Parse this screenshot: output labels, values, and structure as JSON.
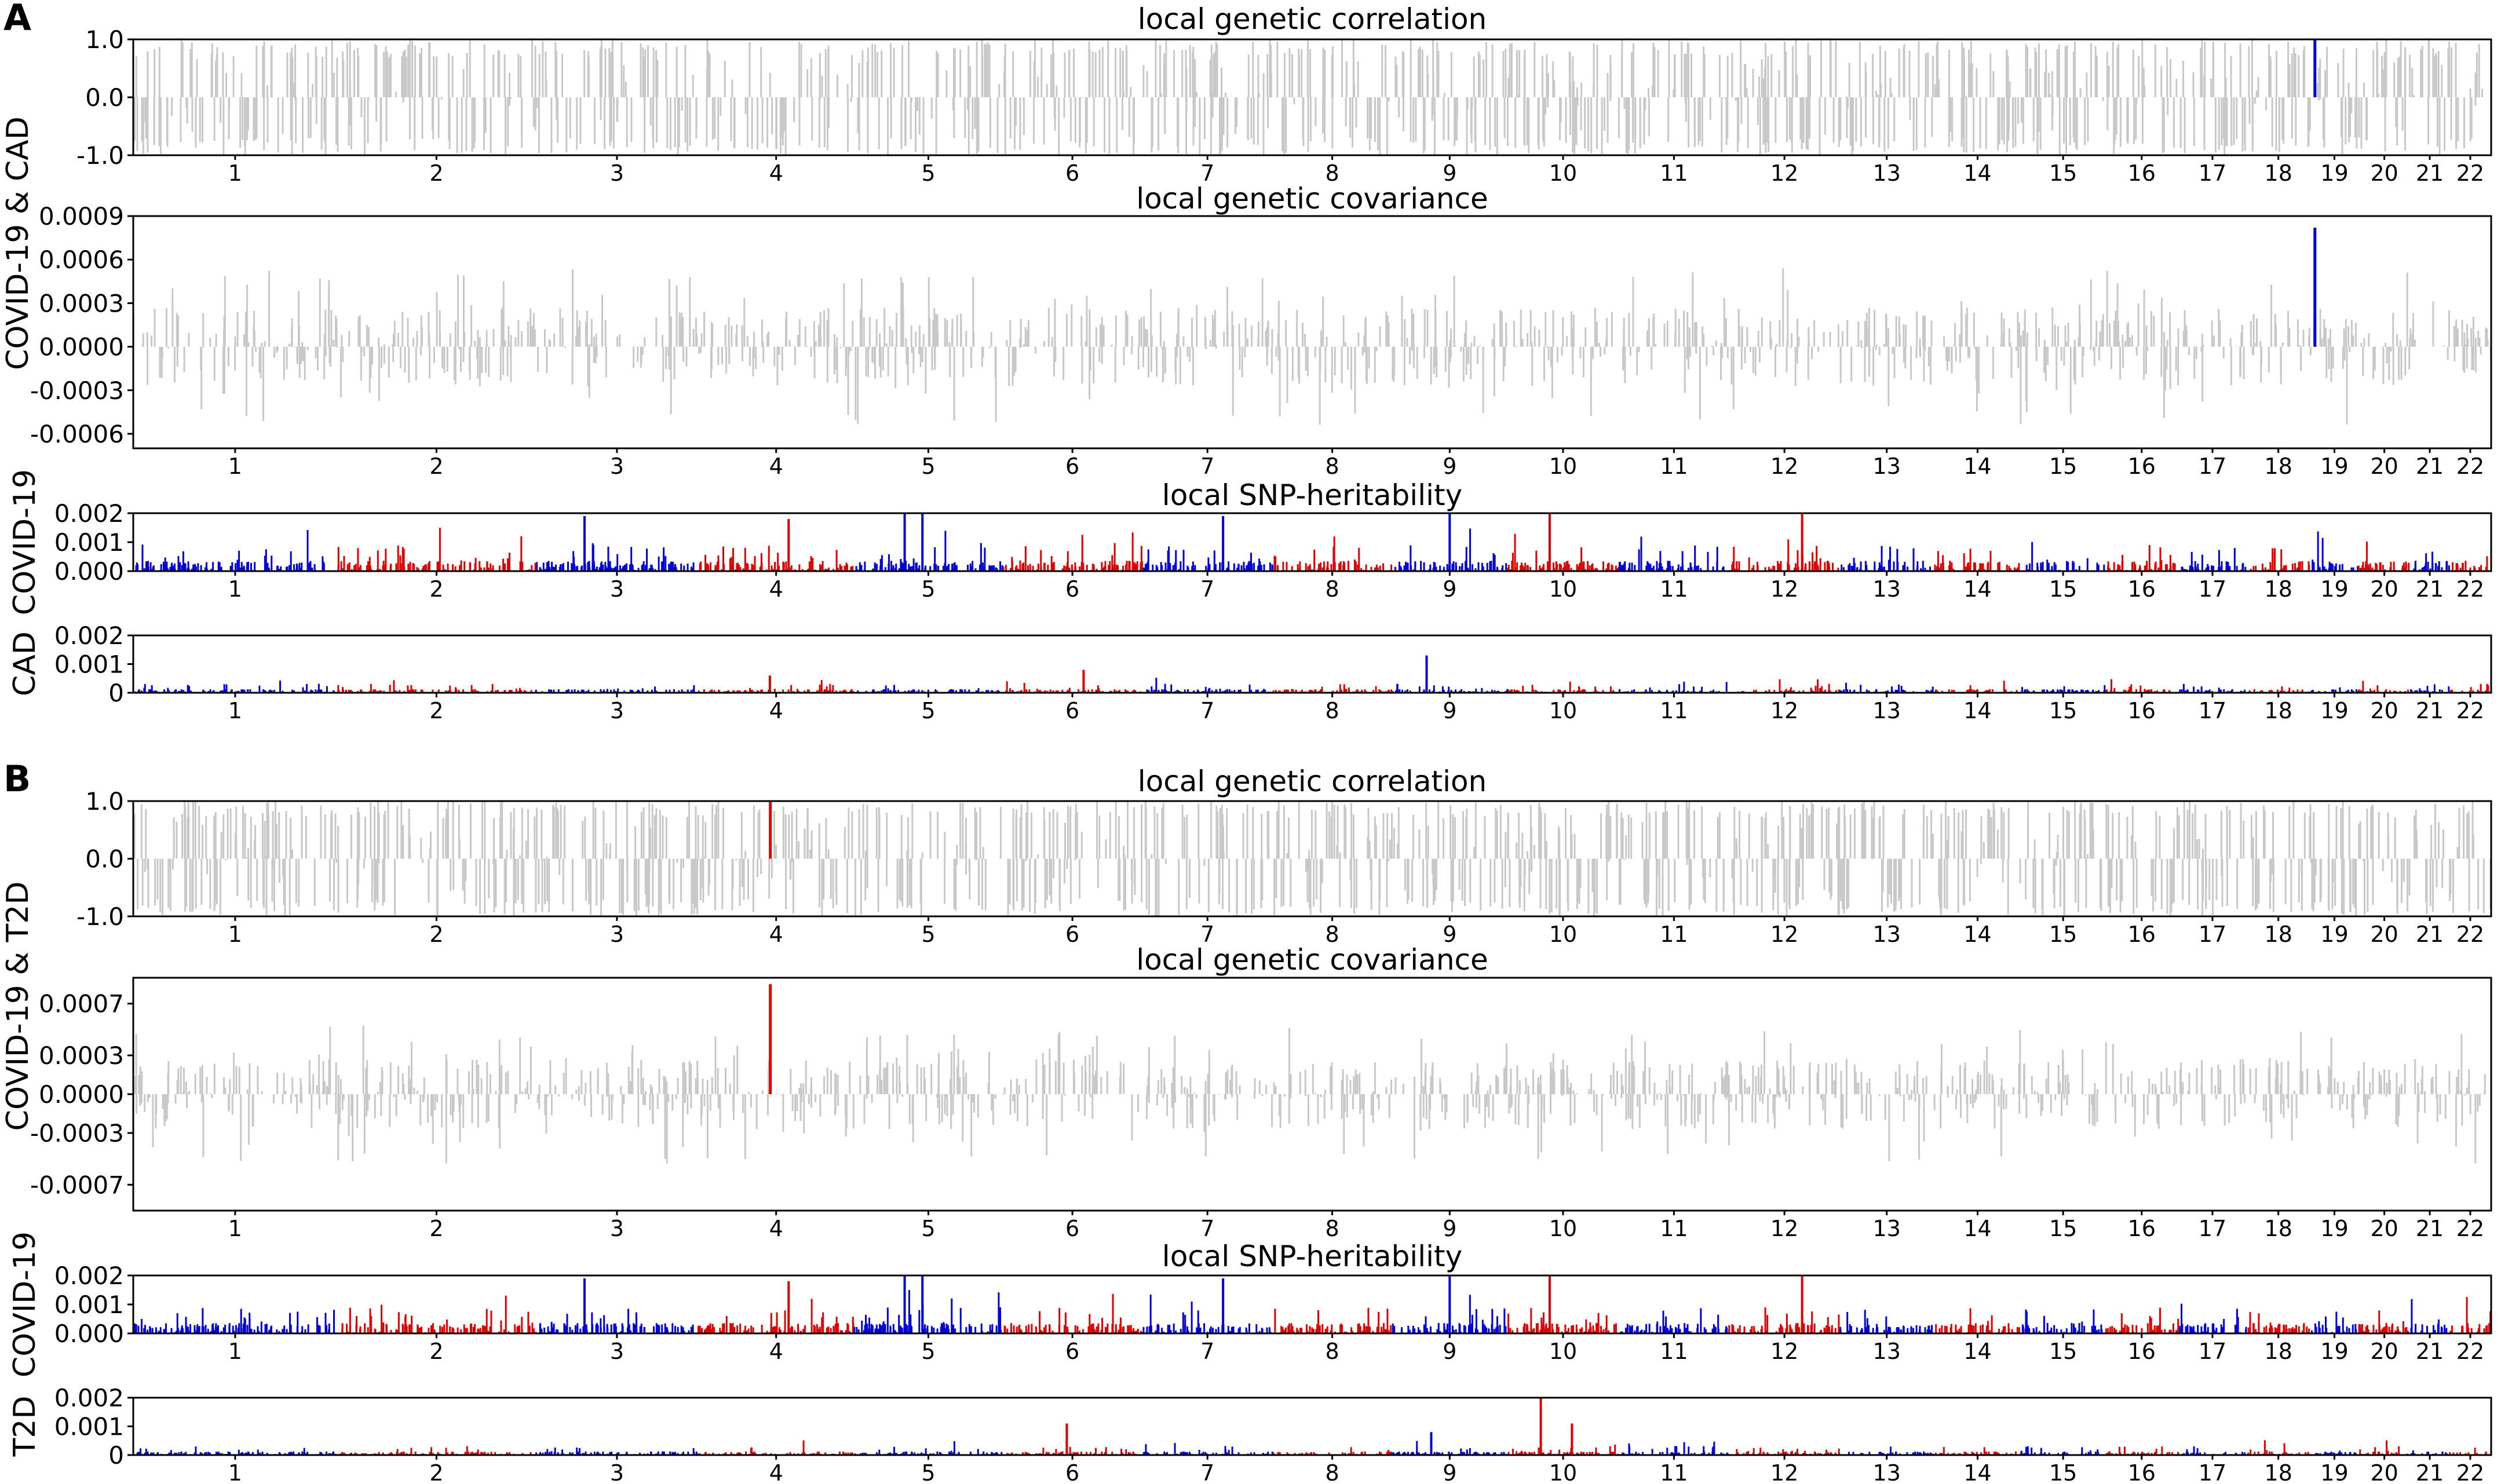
{
  "panels": [
    {
      "letter": "A",
      "pair_label": "COVID-19 & CAD",
      "trait1": "COVID-19",
      "trait2": "CAD"
    },
    {
      "letter": "B",
      "pair_label": "COVID-19 & T2D",
      "trait1": "COVID-19",
      "trait2": "T2D"
    }
  ],
  "colors": {
    "nonsignificant": "#c8c8c8",
    "blue": "#0000dd",
    "red": "#e00000",
    "axis": "#000000"
  },
  "chart_data": [
    {
      "type": "bar",
      "panel": "A",
      "title": "local genetic correlation",
      "ylim": [
        -1.0,
        1.0
      ],
      "yticks": [
        "1.0",
        "0.0",
        "-1.0"
      ],
      "categories": [
        "1",
        "2",
        "3",
        "4",
        "5",
        "6",
        "7",
        "8",
        "9",
        "10",
        "11",
        "12",
        "13",
        "14",
        "15",
        "16",
        "17",
        "18",
        "19",
        "20",
        "21",
        "22"
      ],
      "highlight": [
        {
          "chromosome": "19",
          "value": 1.0,
          "color": "blue"
        }
      ],
      "background": "dense grey bars spanning -1.0 to 1.0 across all chromosomes"
    },
    {
      "type": "bar",
      "panel": "A",
      "title": "local genetic covariance",
      "ylim": [
        -0.0007,
        0.0009
      ],
      "yticks": [
        "0.0009",
        "0.0006",
        "0.0003",
        "0.0000",
        "-0.0003",
        "-0.0006"
      ],
      "categories": [
        "1",
        "2",
        "3",
        "4",
        "5",
        "6",
        "7",
        "8",
        "9",
        "10",
        "11",
        "12",
        "13",
        "14",
        "15",
        "16",
        "17",
        "18",
        "19",
        "20",
        "21",
        "22"
      ],
      "highlight": [
        {
          "chromosome": "19",
          "value": 0.00082,
          "color": "blue"
        }
      ],
      "background": "grey bars mostly within -0.0004 to 0.0004"
    },
    {
      "type": "bar",
      "panel": "A",
      "title": "local SNP-heritability",
      "trait": "COVID-19",
      "ylim": [
        0,
        0.002
      ],
      "yticks": [
        "0.002",
        "0.001",
        "0.000"
      ],
      "categories": [
        "1",
        "2",
        "3",
        "4",
        "5",
        "6",
        "7",
        "8",
        "9",
        "10",
        "11",
        "12",
        "13",
        "14",
        "15",
        "16",
        "17",
        "18",
        "19",
        "20",
        "21",
        "22"
      ],
      "chromosome_colors": "alternating blue/red by chromosome",
      "peaks": [
        {
          "chromosome": "3",
          "value": 0.0019
        },
        {
          "chromosome": "4",
          "value": 0.0018
        },
        {
          "chromosome": "5",
          "value": 0.002
        },
        {
          "chromosome": "5",
          "value": 0.002
        },
        {
          "chromosome": "7",
          "value": 0.0019
        },
        {
          "chromosome": "9",
          "value": 0.002
        },
        {
          "chromosome": "10",
          "value": 0.002
        },
        {
          "chromosome": "12",
          "value": 0.002
        }
      ]
    },
    {
      "type": "bar",
      "panel": "A",
      "title": "",
      "trait": "CAD",
      "ylim": [
        0,
        0.002
      ],
      "yticks": [
        "0.002",
        "0.001",
        "0"
      ],
      "categories": [
        "1",
        "2",
        "3",
        "4",
        "5",
        "6",
        "7",
        "8",
        "9",
        "10",
        "11",
        "12",
        "13",
        "14",
        "15",
        "16",
        "17",
        "18",
        "19",
        "20",
        "21",
        "22"
      ],
      "chromosome_colors": "alternating blue/red by chromosome",
      "peaks": [
        {
          "chromosome": "9",
          "value": 0.0013
        },
        {
          "chromosome": "6",
          "value": 0.0008
        },
        {
          "chromosome": "4",
          "value": 0.0006
        }
      ]
    },
    {
      "type": "bar",
      "panel": "B",
      "title": "local genetic correlation",
      "ylim": [
        -1.0,
        1.0
      ],
      "yticks": [
        "1.0",
        "0.0",
        "-1.0"
      ],
      "categories": [
        "1",
        "2",
        "3",
        "4",
        "5",
        "6",
        "7",
        "8",
        "9",
        "10",
        "11",
        "12",
        "13",
        "14",
        "15",
        "16",
        "17",
        "18",
        "19",
        "20",
        "21",
        "22"
      ],
      "highlight": [
        {
          "chromosome": "4",
          "value": 1.0,
          "color": "red"
        }
      ],
      "background": "dense grey bars spanning -1.0 to 1.0 across all chromosomes"
    },
    {
      "type": "bar",
      "panel": "B",
      "title": "local genetic covariance",
      "ylim": [
        -0.0009,
        0.0009
      ],
      "yticks": [
        "0.0007",
        "0.0003",
        "0.0000",
        "-0.0003",
        "-0.0007"
      ],
      "categories": [
        "1",
        "2",
        "3",
        "4",
        "5",
        "6",
        "7",
        "8",
        "9",
        "10",
        "11",
        "12",
        "13",
        "14",
        "15",
        "16",
        "17",
        "18",
        "19",
        "20",
        "21",
        "22"
      ],
      "highlight": [
        {
          "chromosome": "4",
          "value": 0.00085,
          "color": "red"
        }
      ],
      "background": "grey bars mostly within -0.0005 to 0.0005"
    },
    {
      "type": "bar",
      "panel": "B",
      "title": "local SNP-heritability",
      "trait": "COVID-19",
      "ylim": [
        0,
        0.002
      ],
      "yticks": [
        "0.002",
        "0.001",
        "0.000"
      ],
      "categories": [
        "1",
        "2",
        "3",
        "4",
        "5",
        "6",
        "7",
        "8",
        "9",
        "10",
        "11",
        "12",
        "13",
        "14",
        "15",
        "16",
        "17",
        "18",
        "19",
        "20",
        "21",
        "22"
      ],
      "chromosome_colors": "alternating blue/red by chromosome",
      "peaks": [
        {
          "chromosome": "3",
          "value": 0.0019
        },
        {
          "chromosome": "4",
          "value": 0.0018
        },
        {
          "chromosome": "5",
          "value": 0.002
        },
        {
          "chromosome": "5",
          "value": 0.002
        },
        {
          "chromosome": "7",
          "value": 0.0019
        },
        {
          "chromosome": "9",
          "value": 0.002
        },
        {
          "chromosome": "10",
          "value": 0.002
        },
        {
          "chromosome": "12",
          "value": 0.002
        }
      ]
    },
    {
      "type": "bar",
      "panel": "B",
      "title": "",
      "trait": "T2D",
      "ylim": [
        0,
        0.002
      ],
      "yticks": [
        "0.002",
        "0.001",
        "0"
      ],
      "categories": [
        "1",
        "2",
        "3",
        "4",
        "5",
        "6",
        "7",
        "8",
        "9",
        "10",
        "11",
        "12",
        "13",
        "14",
        "15",
        "16",
        "17",
        "18",
        "19",
        "20",
        "21",
        "22"
      ],
      "chromosome_colors": "alternating blue/red by chromosome",
      "peaks": [
        {
          "chromosome": "10",
          "value": 0.002
        },
        {
          "chromosome": "10",
          "value": 0.0011
        },
        {
          "chromosome": "6",
          "value": 0.0011
        },
        {
          "chromosome": "9",
          "value": 0.0008
        }
      ]
    }
  ]
}
